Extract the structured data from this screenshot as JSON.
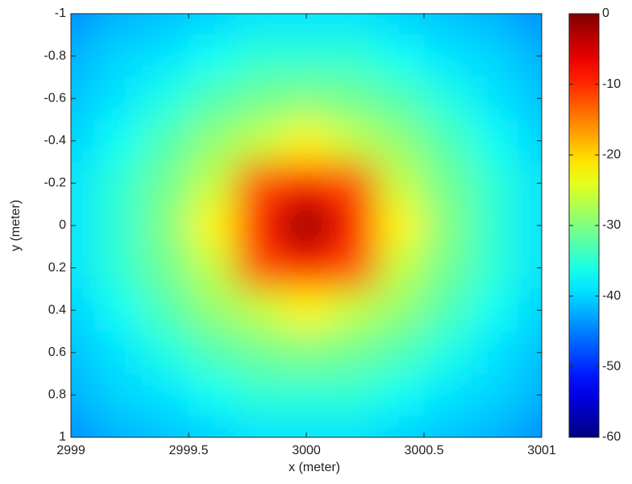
{
  "chart_data": {
    "type": "heatmap",
    "xlabel": "x (meter)",
    "ylabel": "y (meter)",
    "x": [
      2999,
      2999.2,
      2999.4,
      2999.6,
      2999.8,
      3000,
      3000.2,
      3000.4,
      3000.6,
      3000.8,
      3001
    ],
    "y": [
      -1,
      -0.8,
      -0.6,
      -0.4,
      -0.2,
      0,
      0.2,
      0.4,
      0.6,
      0.8,
      1
    ],
    "z": [
      [
        -44,
        -42,
        -41,
        -40,
        -39,
        -39,
        -39,
        -40,
        -41,
        -42,
        -44
      ],
      [
        -42,
        -40,
        -39,
        -37,
        -35,
        -35,
        -35,
        -37,
        -39,
        -40,
        -42
      ],
      [
        -41,
        -39,
        -36,
        -33,
        -31,
        -30,
        -31,
        -33,
        -36,
        -39,
        -41
      ],
      [
        -40,
        -37,
        -33,
        -29,
        -26,
        -22,
        -26,
        -29,
        -33,
        -37,
        -40
      ],
      [
        -39,
        -35,
        -31,
        -26,
        -12,
        -8,
        -12,
        -26,
        -31,
        -35,
        -39
      ],
      [
        -39,
        -35,
        -30,
        -22,
        -8,
        0,
        -8,
        -22,
        -30,
        -35,
        -39
      ],
      [
        -39,
        -35,
        -31,
        -26,
        -12,
        -8,
        -12,
        -26,
        -31,
        -35,
        -39
      ],
      [
        -40,
        -37,
        -33,
        -29,
        -26,
        -22,
        -26,
        -29,
        -33,
        -37,
        -40
      ],
      [
        -41,
        -39,
        -36,
        -33,
        -31,
        -30,
        -31,
        -33,
        -36,
        -39,
        -41
      ],
      [
        -42,
        -40,
        -39,
        -37,
        -35,
        -35,
        -35,
        -37,
        -39,
        -40,
        -42
      ],
      [
        -44,
        -42,
        -41,
        -40,
        -39,
        -39,
        -39,
        -40,
        -41,
        -42,
        -44
      ]
    ],
    "xlim": [
      2999,
      3001
    ],
    "xticks": [
      2999,
      2999.5,
      3000,
      3000.5,
      3001
    ],
    "ylim": [
      -1,
      1
    ],
    "yticks": [
      -1,
      -0.8,
      -0.6,
      -0.4,
      -0.2,
      0,
      0.2,
      0.4,
      0.6,
      0.8,
      1
    ],
    "y_reversed": true,
    "colormap": "jet",
    "clim": [
      -60,
      0
    ],
    "cticks": [
      0,
      -10,
      -20,
      -30,
      -40,
      -50,
      -60
    ]
  }
}
